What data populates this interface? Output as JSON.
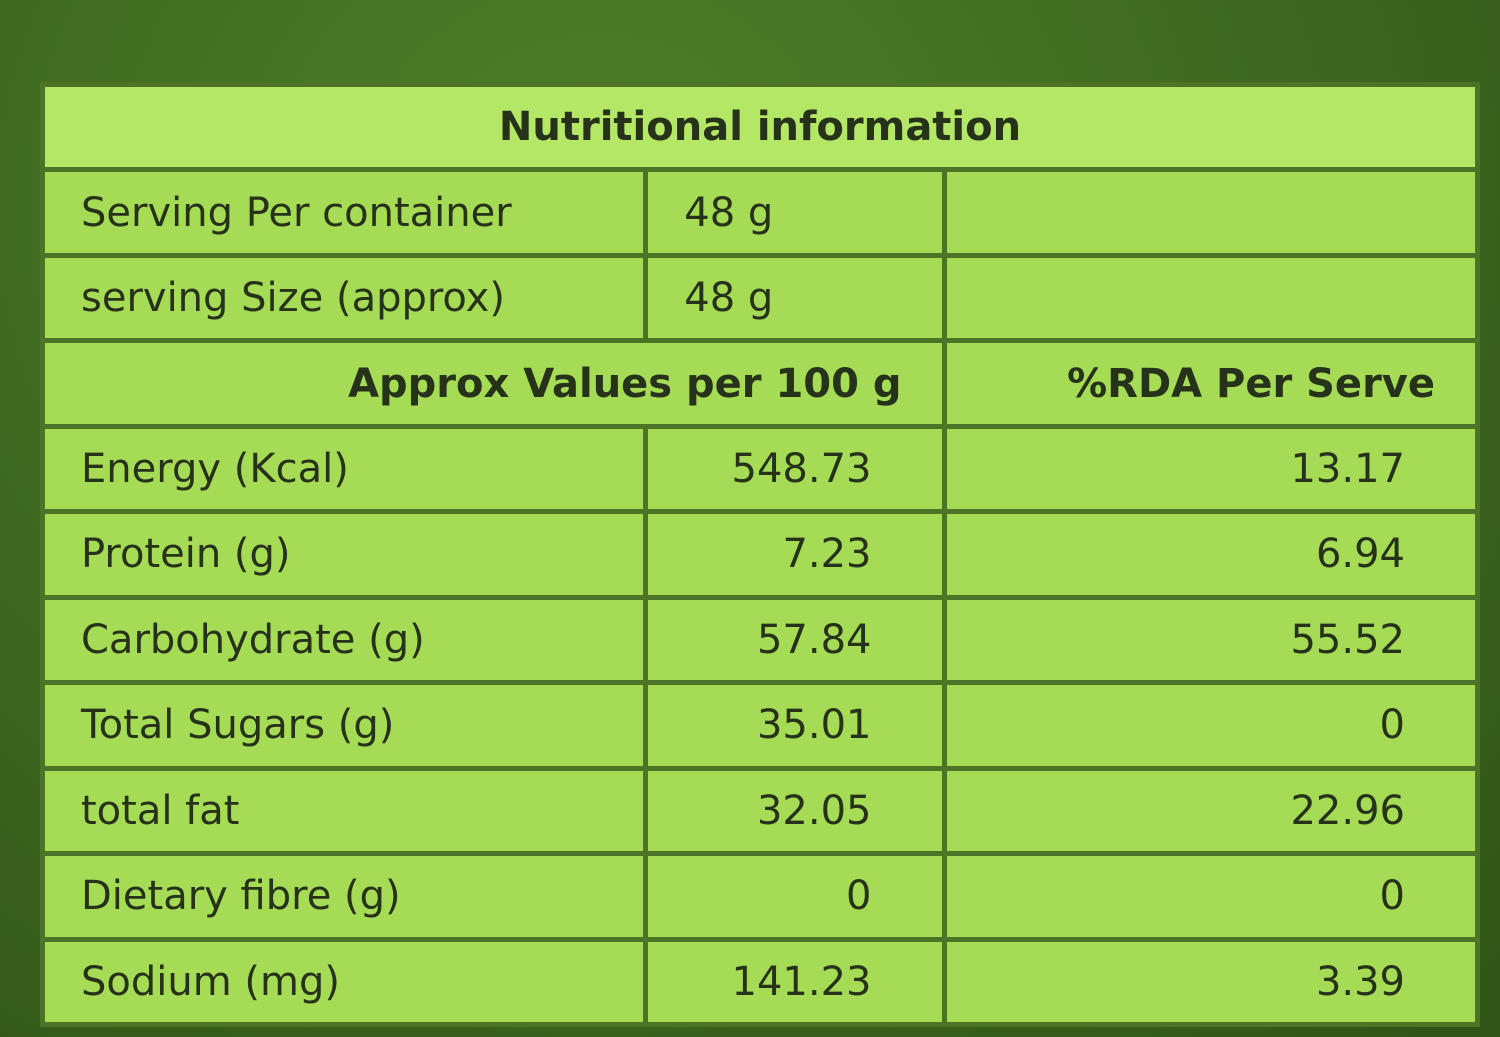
{
  "title": "Nutritional information",
  "serving": [
    [
      "Serving Per container",
      "48 g"
    ],
    [
      "serving Size (approx)",
      "48 g"
    ]
  ],
  "header": [
    "Approx Values per 100 g",
    "%RDA Per Serve"
  ],
  "rows": [
    [
      "Energy (Kcal)",
      "548.73",
      "13.17"
    ],
    [
      "Protein (g)",
      "7.23",
      "6.94"
    ],
    [
      "Carbohydrate (g)",
      "57.84",
      "55.52"
    ],
    [
      "Total Sugars (g)",
      "35.01",
      "0"
    ],
    [
      "total fat",
      "32.05",
      "22.96"
    ],
    [
      "Dietary fibre (g)",
      "0",
      "0"
    ],
    [
      "Sodium (mg)",
      "141.23",
      "3.39"
    ]
  ]
}
